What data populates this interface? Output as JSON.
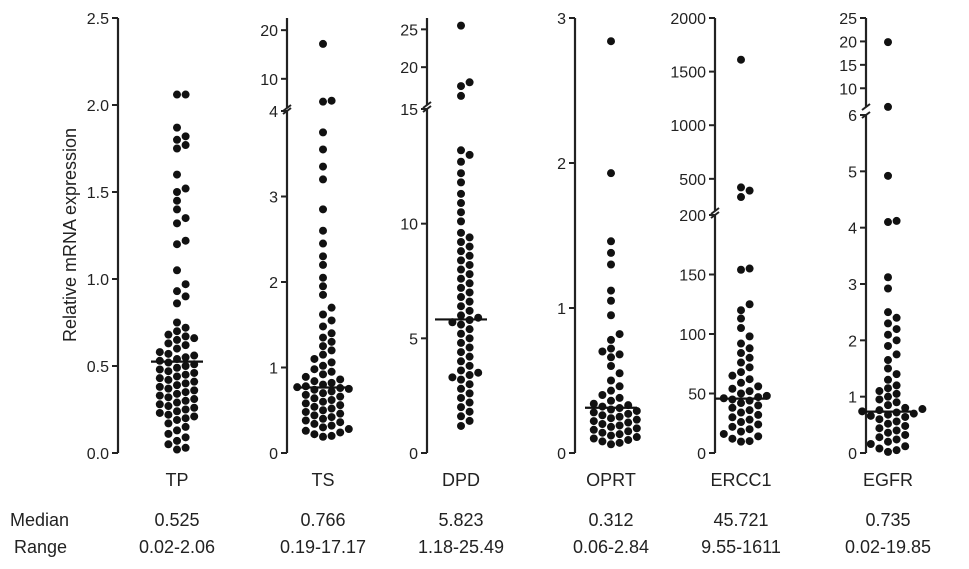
{
  "chart_data": {
    "type": "scatter",
    "ylabel": "Relative mRNA expression",
    "stats_row_labels": {
      "median": "Median",
      "range": "Range"
    },
    "panels": [
      {
        "name": "TP",
        "median": 0.525,
        "median_text": "0.525",
        "range_text": "0.02-2.06",
        "ticks": [
          "0.0",
          "0.5",
          "1.0",
          "1.5",
          "2.0",
          "2.5"
        ],
        "values": [
          2.06,
          2.06,
          1.87,
          1.82,
          1.8,
          1.77,
          1.75,
          1.6,
          1.52,
          1.5,
          1.45,
          1.4,
          1.35,
          1.32,
          1.22,
          1.2,
          1.05,
          0.97,
          0.93,
          0.9,
          0.86,
          0.75,
          0.72,
          0.7,
          0.68,
          0.67,
          0.66,
          0.65,
          0.63,
          0.62,
          0.6,
          0.58,
          0.57,
          0.56,
          0.55,
          0.54,
          0.53,
          0.52,
          0.51,
          0.5,
          0.49,
          0.48,
          0.47,
          0.46,
          0.45,
          0.44,
          0.43,
          0.42,
          0.41,
          0.4,
          0.39,
          0.38,
          0.37,
          0.36,
          0.35,
          0.34,
          0.33,
          0.32,
          0.31,
          0.3,
          0.29,
          0.28,
          0.27,
          0.26,
          0.25,
          0.24,
          0.23,
          0.22,
          0.21,
          0.2,
          0.19,
          0.17,
          0.15,
          0.13,
          0.11,
          0.09,
          0.07,
          0.05,
          0.03,
          0.02
        ]
      },
      {
        "name": "TS",
        "median": 0.766,
        "median_text": "0.766",
        "range_text": "0.19-17.17",
        "ticks": [
          "0",
          "1",
          "2",
          "3",
          "4",
          "10",
          "20"
        ],
        "values": [
          17.17,
          5.5,
          5.3,
          3.75,
          3.55,
          3.35,
          3.2,
          2.85,
          2.6,
          2.45,
          2.3,
          2.2,
          2.05,
          1.95,
          1.85,
          1.7,
          1.62,
          1.55,
          1.48,
          1.4,
          1.35,
          1.3,
          1.25,
          1.2,
          1.15,
          1.1,
          1.06,
          1.02,
          0.98,
          0.95,
          0.92,
          0.89,
          0.86,
          0.84,
          0.82,
          0.8,
          0.78,
          0.77,
          0.76,
          0.75,
          0.74,
          0.72,
          0.7,
          0.68,
          0.66,
          0.64,
          0.62,
          0.6,
          0.58,
          0.56,
          0.54,
          0.52,
          0.5,
          0.48,
          0.46,
          0.44,
          0.42,
          0.4,
          0.38,
          0.36,
          0.34,
          0.32,
          0.3,
          0.28,
          0.26,
          0.24,
          0.22,
          0.2,
          0.19
        ]
      },
      {
        "name": "DPD",
        "median": 5.823,
        "median_text": "5.823",
        "range_text": "1.18-25.49",
        "ticks": [
          "0",
          "5",
          "10",
          "15",
          "20",
          "25"
        ],
        "values": [
          25.49,
          18.0,
          17.5,
          16.2,
          13.2,
          13.0,
          12.7,
          12.2,
          11.8,
          11.3,
          10.9,
          10.5,
          10.1,
          9.6,
          9.4,
          9.2,
          9.0,
          8.8,
          8.6,
          8.4,
          8.2,
          8.0,
          7.8,
          7.6,
          7.4,
          7.2,
          7.0,
          6.8,
          6.6,
          6.4,
          6.2,
          6.0,
          5.9,
          5.8,
          5.7,
          5.6,
          5.4,
          5.2,
          5.0,
          4.8,
          4.6,
          4.4,
          4.2,
          4.0,
          3.8,
          3.6,
          3.5,
          3.4,
          3.3,
          3.2,
          3.0,
          2.8,
          2.6,
          2.4,
          2.2,
          2.0,
          1.8,
          1.6,
          1.4,
          1.18
        ]
      },
      {
        "name": "OPRT",
        "median": 0.312,
        "median_text": "0.312",
        "range_text": "0.06-2.84",
        "ticks": [
          "0",
          "1",
          "2",
          "3"
        ],
        "values": [
          2.84,
          1.93,
          1.46,
          1.38,
          1.3,
          1.12,
          1.05,
          0.95,
          0.82,
          0.78,
          0.72,
          0.7,
          0.68,
          0.66,
          0.6,
          0.55,
          0.5,
          0.46,
          0.43,
          0.4,
          0.38,
          0.36,
          0.34,
          0.33,
          0.32,
          0.31,
          0.3,
          0.29,
          0.28,
          0.27,
          0.26,
          0.25,
          0.24,
          0.23,
          0.22,
          0.21,
          0.2,
          0.19,
          0.18,
          0.17,
          0.16,
          0.15,
          0.14,
          0.13,
          0.12,
          0.11,
          0.1,
          0.09,
          0.08,
          0.07,
          0.06
        ]
      },
      {
        "name": "ERCC1",
        "median": 45.721,
        "median_text": "45.721",
        "range_text": "9.55-1611",
        "ticks": [
          "0",
          "50",
          "100",
          "150",
          "200",
          "500",
          "1000",
          "1500",
          "2000"
        ],
        "values": [
          1611,
          420,
          390,
          330,
          155,
          154,
          125,
          120,
          113,
          105,
          98,
          92,
          88,
          84,
          80,
          76,
          72,
          68,
          65,
          62,
          59,
          56,
          54,
          52,
          50,
          48,
          47,
          46,
          45,
          44,
          42,
          40,
          38,
          36,
          34,
          32,
          30,
          28,
          26,
          24,
          22,
          20,
          18,
          16,
          14,
          12,
          10,
          9.55
        ]
      },
      {
        "name": "EGFR",
        "median": 0.735,
        "median_text": "0.735",
        "range_text": "0.02-19.85",
        "ticks": [
          "0",
          "1",
          "2",
          "3",
          "4",
          "5",
          "6",
          "10",
          "15",
          "20",
          "25"
        ],
        "values": [
          19.85,
          6.02,
          4.92,
          4.12,
          4.1,
          3.12,
          2.92,
          2.5,
          2.4,
          2.3,
          2.2,
          2.1,
          2.0,
          1.9,
          1.75,
          1.65,
          1.5,
          1.4,
          1.3,
          1.2,
          1.15,
          1.1,
          1.05,
          1.0,
          0.95,
          0.9,
          0.85,
          0.8,
          0.78,
          0.76,
          0.74,
          0.72,
          0.7,
          0.68,
          0.66,
          0.64,
          0.6,
          0.56,
          0.52,
          0.48,
          0.44,
          0.4,
          0.36,
          0.32,
          0.28,
          0.24,
          0.2,
          0.16,
          0.12,
          0.08,
          0.05,
          0.02
        ]
      }
    ]
  }
}
